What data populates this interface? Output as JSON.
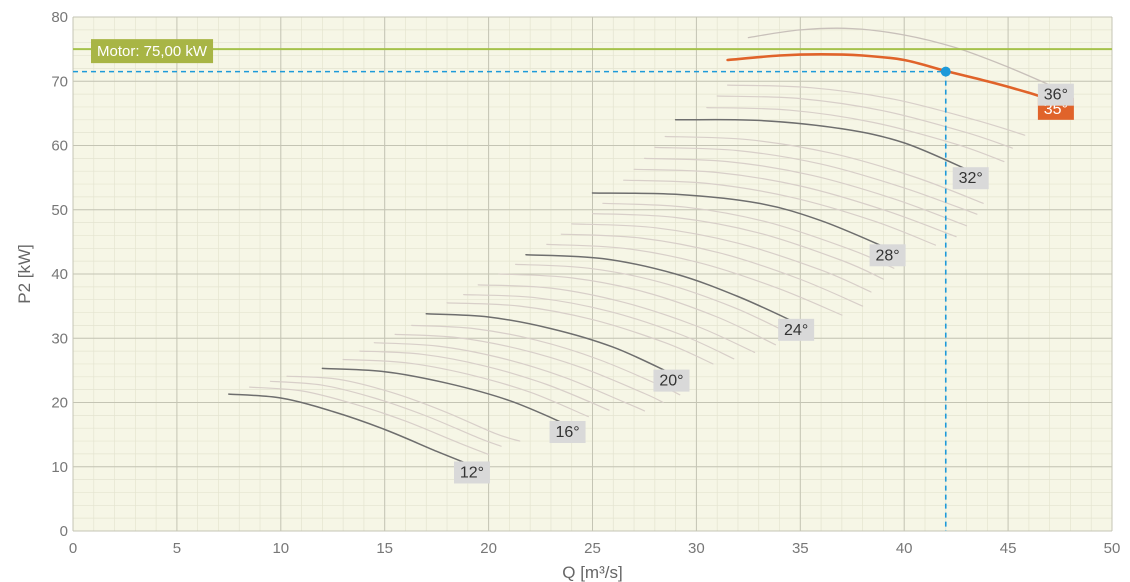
{
  "chart_data": {
    "type": "line",
    "xlabel": "Q [m³/s]",
    "ylabel": "P2 [kW]",
    "xlim": [
      0,
      50
    ],
    "ylim": [
      0,
      80
    ],
    "xticks": [
      0,
      5,
      10,
      15,
      20,
      25,
      30,
      35,
      40,
      45,
      50
    ],
    "yticks": [
      0,
      10,
      20,
      30,
      40,
      50,
      60,
      70,
      80
    ],
    "minor_grid": true,
    "motor_line": {
      "label": "Motor: 75,00 kW",
      "value": 75
    },
    "operating_point": {
      "x": 42,
      "y": 71.5
    },
    "selected_series": "35°",
    "series": [
      {
        "name": "12°",
        "labeled": true,
        "x": [
          7.5,
          10,
          12.5,
          15,
          17.5,
          19.2
        ],
        "y": [
          21.3,
          20.7,
          18.6,
          15.8,
          12.4,
          10.2
        ]
      },
      {
        "name": "",
        "labeled": false,
        "x": [
          8.5,
          11,
          13.5,
          16,
          18.5,
          20.0
        ],
        "y": [
          22.4,
          21.8,
          19.8,
          17.1,
          13.8,
          11.9
        ]
      },
      {
        "name": "",
        "labeled": false,
        "x": [
          9.5,
          12,
          14.5,
          17,
          19.5,
          20.6
        ],
        "y": [
          23.3,
          22.7,
          20.7,
          17.9,
          14.5,
          13.2
        ]
      },
      {
        "name": "",
        "labeled": false,
        "x": [
          10.3,
          12.8,
          15.3,
          17.8,
          20.3,
          21.5
        ],
        "y": [
          24.1,
          23.6,
          21.6,
          18.7,
          15.2,
          14.0
        ]
      },
      {
        "name": "16°",
        "labeled": true,
        "x": [
          12,
          15,
          18,
          21,
          23.8
        ],
        "y": [
          25.3,
          24.8,
          23.0,
          20.3,
          16.5
        ]
      },
      {
        "name": "",
        "labeled": false,
        "x": [
          13,
          16,
          19,
          22,
          24.8
        ],
        "y": [
          26.7,
          26.2,
          24.4,
          21.6,
          17.8
        ]
      },
      {
        "name": "",
        "labeled": false,
        "x": [
          13.8,
          16.8,
          19.8,
          22.8,
          25.8
        ],
        "y": [
          28.0,
          27.5,
          25.7,
          22.8,
          18.8
        ]
      },
      {
        "name": "",
        "labeled": false,
        "x": [
          14.5,
          17.5,
          20.5,
          23.5,
          26.5,
          27.5
        ],
        "y": [
          29.3,
          28.8,
          27.0,
          24.1,
          20.1,
          18.7
        ]
      },
      {
        "name": "",
        "labeled": false,
        "x": [
          15.5,
          18.5,
          21.5,
          24.5,
          27.5,
          28.4
        ],
        "y": [
          30.6,
          30.1,
          28.3,
          25.4,
          21.4,
          20.0
        ]
      },
      {
        "name": "",
        "labeled": false,
        "x": [
          16.3,
          19.3,
          22.3,
          25.3,
          28.3,
          29.2
        ],
        "y": [
          32.0,
          31.5,
          29.7,
          26.7,
          22.6,
          21.2
        ]
      },
      {
        "name": "20°",
        "labeled": true,
        "x": [
          17,
          20,
          23,
          26,
          28.8
        ],
        "y": [
          33.8,
          33.3,
          31.5,
          28.6,
          24.5
        ]
      },
      {
        "name": "",
        "labeled": false,
        "x": [
          18,
          21.5,
          25,
          28.5,
          30.8
        ],
        "y": [
          35.5,
          35.0,
          32.9,
          29.3,
          26.0
        ]
      },
      {
        "name": "",
        "labeled": false,
        "x": [
          18.8,
          22.3,
          25.8,
          29.3,
          31.8
        ],
        "y": [
          36.8,
          36.3,
          34.2,
          30.5,
          26.8
        ]
      },
      {
        "name": "",
        "labeled": false,
        "x": [
          19.5,
          23,
          26.5,
          30,
          32.8
        ],
        "y": [
          38.3,
          37.8,
          35.6,
          31.9,
          27.8
        ]
      },
      {
        "name": "",
        "labeled": false,
        "x": [
          20.5,
          24,
          27.5,
          31,
          33.8
        ],
        "y": [
          40.0,
          39.4,
          37.2,
          33.3,
          29.0
        ]
      },
      {
        "name": "",
        "labeled": false,
        "x": [
          21.3,
          24.8,
          28.3,
          31.8,
          34.5
        ],
        "y": [
          41.5,
          40.9,
          38.7,
          34.8,
          30.7
        ]
      },
      {
        "name": "24°",
        "labeled": true,
        "x": [
          21.8,
          25.5,
          29,
          32,
          34.8
        ],
        "y": [
          43.0,
          42.4,
          40.0,
          36.5,
          32.4
        ]
      },
      {
        "name": "",
        "labeled": false,
        "x": [
          22.8,
          26.5,
          30.2,
          33.9,
          37.0
        ],
        "y": [
          44.6,
          44.0,
          41.7,
          37.8,
          33.6
        ]
      },
      {
        "name": "",
        "labeled": false,
        "x": [
          23.5,
          27.3,
          31.1,
          34.9,
          38.0
        ],
        "y": [
          46.2,
          45.6,
          43.3,
          39.3,
          35.0
        ]
      },
      {
        "name": "",
        "labeled": false,
        "x": [
          24,
          28,
          32,
          36,
          38.4
        ],
        "y": [
          47.8,
          47.2,
          44.8,
          40.6,
          37.2
        ]
      },
      {
        "name": "",
        "labeled": false,
        "x": [
          25,
          29,
          33,
          37,
          39.0
        ],
        "y": [
          49.4,
          48.8,
          46.4,
          42.1,
          39.2
        ]
      },
      {
        "name": "",
        "labeled": false,
        "x": [
          25.5,
          29.5,
          33.5,
          37.5,
          39.5
        ],
        "y": [
          51.0,
          50.4,
          48.0,
          43.7,
          40.9
        ]
      },
      {
        "name": "28°",
        "labeled": true,
        "x": [
          25,
          29,
          33,
          36,
          39.2
        ],
        "y": [
          52.6,
          52.4,
          51.0,
          48.3,
          44.0
        ]
      },
      {
        "name": "",
        "labeled": false,
        "x": [
          26.5,
          30.5,
          34.5,
          38.5,
          41.5
        ],
        "y": [
          54.6,
          54.1,
          52.0,
          48.3,
          44.5
        ]
      },
      {
        "name": "",
        "labeled": false,
        "x": [
          27,
          31,
          35,
          39,
          42.5
        ],
        "y": [
          56.3,
          55.8,
          53.7,
          50.0,
          45.8
        ]
      },
      {
        "name": "",
        "labeled": false,
        "x": [
          27.5,
          31.5,
          35.5,
          39.5,
          43.0
        ],
        "y": [
          58.0,
          57.5,
          55.4,
          51.7,
          47.5
        ]
      },
      {
        "name": "",
        "labeled": false,
        "x": [
          28,
          32,
          36,
          40,
          43.5
        ],
        "y": [
          59.7,
          59.2,
          57.1,
          53.4,
          49.3
        ]
      },
      {
        "name": "",
        "labeled": false,
        "x": [
          28.5,
          32.5,
          36.5,
          40.5,
          43.8
        ],
        "y": [
          61.4,
          60.9,
          58.8,
          55.1,
          51.0
        ]
      },
      {
        "name": "32°",
        "labeled": true,
        "x": [
          29,
          33,
          37,
          40,
          43.2
        ],
        "y": [
          64.0,
          63.9,
          62.6,
          60.4,
          56.0
        ]
      },
      {
        "name": "",
        "labeled": false,
        "x": [
          30.5,
          34.5,
          38.5,
          42.5,
          44.8
        ],
        "y": [
          65.9,
          65.5,
          63.6,
          60.2,
          57.5
        ]
      },
      {
        "name": "",
        "labeled": false,
        "x": [
          31,
          35,
          39,
          43,
          45.2
        ],
        "y": [
          67.7,
          67.3,
          65.4,
          62.0,
          59.6
        ]
      },
      {
        "name": "",
        "labeled": false,
        "x": [
          31.5,
          35.5,
          39.5,
          43.5,
          45.8
        ],
        "y": [
          69.4,
          69.0,
          67.2,
          63.9,
          61.6
        ]
      },
      {
        "name": "35°",
        "labeled": true,
        "selected": true,
        "x": [
          31.5,
          34,
          36,
          38,
          40,
          42,
          44,
          46,
          47.3
        ],
        "y": [
          73.3,
          74.0,
          74.2,
          74.0,
          73.3,
          71.6,
          70.0,
          68.2,
          66.8
        ]
      },
      {
        "name": "36°",
        "labeled": true,
        "x": [
          32.5,
          35,
          37.5,
          40,
          42.5,
          45,
          47.3
        ],
        "y": [
          76.8,
          78.0,
          78.2,
          77.2,
          75.2,
          72.2,
          69.0
        ]
      }
    ]
  }
}
